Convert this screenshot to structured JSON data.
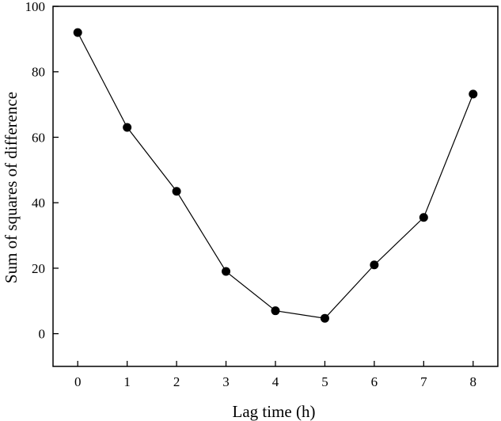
{
  "chart_data": {
    "type": "line",
    "title": "",
    "xlabel": "Lag time (h)",
    "ylabel": "Sum of squares of difference",
    "x": [
      0,
      1,
      2,
      3,
      4,
      5,
      6,
      7,
      8
    ],
    "series": [
      {
        "values": [
          92,
          63,
          43.5,
          19,
          7,
          4.7,
          21,
          35.5,
          73.2
        ]
      }
    ],
    "xlim": [
      -0.5,
      8.5
    ],
    "ylim": [
      -10,
      100
    ],
    "xticks": [
      0,
      1,
      2,
      3,
      4,
      5,
      6,
      7,
      8
    ],
    "yticks": [
      0,
      20,
      40,
      60,
      80,
      100
    ],
    "grid": false,
    "marker": "filled-circle",
    "colors": {
      "line": "#000000",
      "marker": "#000000",
      "axis": "#000000"
    }
  }
}
